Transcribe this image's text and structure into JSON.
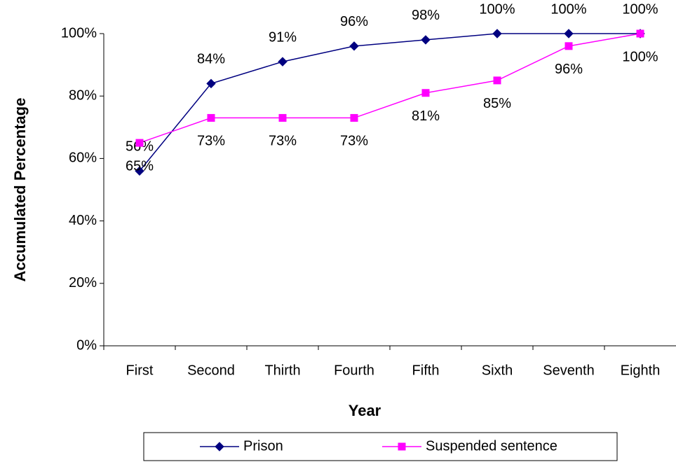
{
  "chart_data": {
    "type": "line",
    "y_label": "Accumulated Percentage",
    "x_label": "Year",
    "categories": [
      "First",
      "Second",
      "Thirth",
      "Fourth",
      "Fifth",
      "Sixth",
      "Seventh",
      "Eighth"
    ],
    "series": [
      {
        "name": "Prison",
        "color": "#000080",
        "marker": "diamond",
        "values": [
          56,
          84,
          91,
          96,
          98,
          100,
          100,
          100
        ],
        "value_labels": [
          "56%",
          "84%",
          "91%",
          "96%",
          "98%",
          "100%",
          "100%",
          "100%"
        ]
      },
      {
        "name": "Suspended sentence",
        "color": "#ff00ff",
        "marker": "square",
        "values": [
          65,
          73,
          73,
          73,
          81,
          85,
          96,
          100
        ],
        "value_labels": [
          "65%",
          "73%",
          "73%",
          "73%",
          "81%",
          "85%",
          "96%",
          "100%"
        ]
      }
    ],
    "ylim": [
      0,
      100
    ],
    "yticks": [
      {
        "value": 0,
        "label": "0%"
      },
      {
        "value": 20,
        "label": "20%"
      },
      {
        "value": 40,
        "label": "40%"
      },
      {
        "value": 60,
        "label": "60%"
      },
      {
        "value": 80,
        "label": "80%"
      },
      {
        "value": 100,
        "label": "100%"
      }
    ],
    "legend": "bottom"
  }
}
